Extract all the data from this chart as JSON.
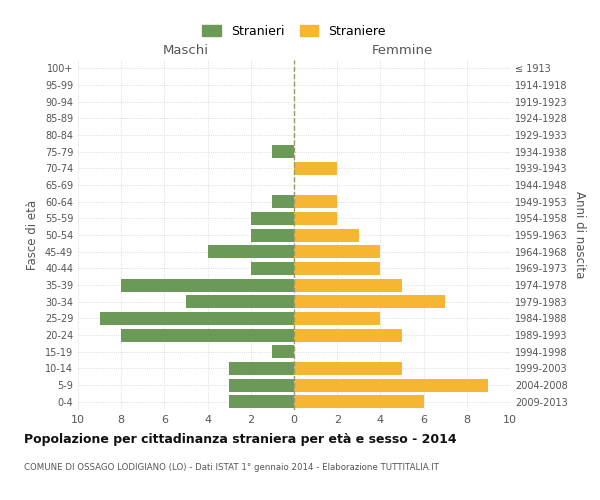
{
  "age_groups": [
    "0-4",
    "5-9",
    "10-14",
    "15-19",
    "20-24",
    "25-29",
    "30-34",
    "35-39",
    "40-44",
    "45-49",
    "50-54",
    "55-59",
    "60-64",
    "65-69",
    "70-74",
    "75-79",
    "80-84",
    "85-89",
    "90-94",
    "95-99",
    "100+"
  ],
  "birth_years": [
    "2009-2013",
    "2004-2008",
    "1999-2003",
    "1994-1998",
    "1989-1993",
    "1984-1988",
    "1979-1983",
    "1974-1978",
    "1969-1973",
    "1964-1968",
    "1959-1963",
    "1954-1958",
    "1949-1953",
    "1944-1948",
    "1939-1943",
    "1934-1938",
    "1929-1933",
    "1924-1928",
    "1919-1923",
    "1914-1918",
    "≤ 1913"
  ],
  "maschi": [
    3,
    3,
    3,
    1,
    8,
    9,
    5,
    8,
    2,
    4,
    2,
    2,
    1,
    0,
    0,
    1,
    0,
    0,
    0,
    0,
    0
  ],
  "femmine": [
    6,
    9,
    5,
    0,
    5,
    4,
    7,
    5,
    4,
    4,
    3,
    2,
    2,
    0,
    2,
    0,
    0,
    0,
    0,
    0,
    0
  ],
  "male_color": "#6b9a58",
  "female_color": "#f5b731",
  "center_line_color": "#999966",
  "title": "Popolazione per cittadinanza straniera per età e sesso - 2014",
  "subtitle": "COMUNE DI OSSAGO LODIGIANO (LO) - Dati ISTAT 1° gennaio 2014 - Elaborazione TUTTITALIA.IT",
  "ylabel_left": "Fasce di età",
  "ylabel_right": "Anni di nascita",
  "xlabel_maschi": "Maschi",
  "xlabel_femmine": "Femmine",
  "legend_maschi": "Stranieri",
  "legend_femmine": "Straniere",
  "xlim": 10,
  "background_color": "#ffffff",
  "grid_color": "#d0d0d0"
}
